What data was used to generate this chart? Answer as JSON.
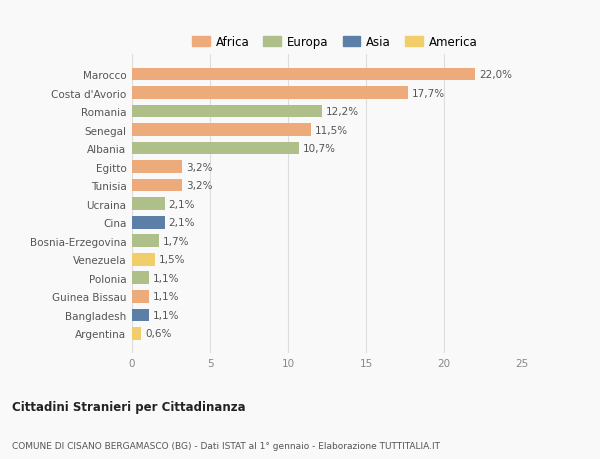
{
  "categories": [
    "Marocco",
    "Costa d'Avorio",
    "Romania",
    "Senegal",
    "Albania",
    "Egitto",
    "Tunisia",
    "Ucraina",
    "Cina",
    "Bosnia-Erzegovina",
    "Venezuela",
    "Polonia",
    "Guinea Bissau",
    "Bangladesh",
    "Argentina"
  ],
  "values": [
    22.0,
    17.7,
    12.2,
    11.5,
    10.7,
    3.2,
    3.2,
    2.1,
    2.1,
    1.7,
    1.5,
    1.1,
    1.1,
    1.1,
    0.6
  ],
  "labels": [
    "22,0%",
    "17,7%",
    "12,2%",
    "11,5%",
    "10,7%",
    "3,2%",
    "3,2%",
    "2,1%",
    "2,1%",
    "1,7%",
    "1,5%",
    "1,1%",
    "1,1%",
    "1,1%",
    "0,6%"
  ],
  "continents": [
    "Africa",
    "Africa",
    "Europa",
    "Africa",
    "Europa",
    "Africa",
    "Africa",
    "Europa",
    "Asia",
    "Europa",
    "America",
    "Europa",
    "Africa",
    "Asia",
    "America"
  ],
  "continent_colors": {
    "Africa": "#EDAA7A",
    "Europa": "#AEBF8A",
    "Asia": "#5B7FA6",
    "America": "#F2CE6B"
  },
  "legend_order": [
    "Africa",
    "Europa",
    "Asia",
    "America"
  ],
  "title1": "Cittadini Stranieri per Cittadinanza",
  "title2": "COMUNE DI CISANO BERGAMASCO (BG) - Dati ISTAT al 1° gennaio - Elaborazione TUTTITALIA.IT",
  "xlim": [
    0,
    25
  ],
  "xticks": [
    0,
    5,
    10,
    15,
    20,
    25
  ],
  "background_color": "#f9f9f9",
  "bar_alpha": 1.0,
  "grid_color": "#dddddd"
}
